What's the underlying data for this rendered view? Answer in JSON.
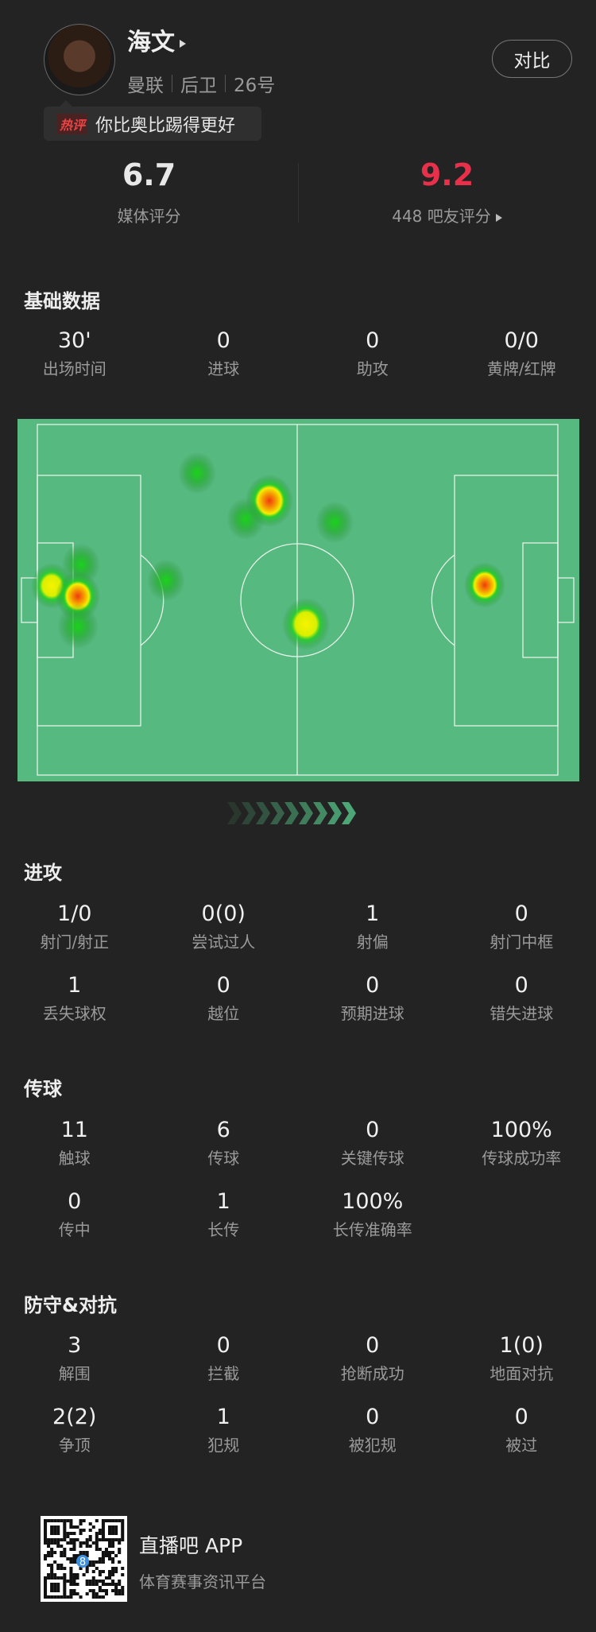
{
  "player": {
    "name": "海文",
    "team": "曼联",
    "position": "后卫",
    "number": "26号"
  },
  "compare_label": "对比",
  "hot_comment": {
    "tag": "热评",
    "text": "你比奥比踢得更好"
  },
  "ratings": {
    "media": {
      "value": "6.7",
      "label": "媒体评分"
    },
    "fans": {
      "value": "9.2",
      "label": "448 吧友评分",
      "color": "#e8304a"
    }
  },
  "sections": {
    "basic": {
      "title": "基础数据",
      "rows": [
        [
          {
            "value": "30'",
            "label": "出场时间"
          },
          {
            "value": "0",
            "label": "进球"
          },
          {
            "value": "0",
            "label": "助攻"
          },
          {
            "value": "0/0",
            "label": "黄牌/红牌"
          }
        ]
      ]
    },
    "attack": {
      "title": "进攻",
      "rows": [
        [
          {
            "value": "1/0",
            "label": "射门/射正"
          },
          {
            "value": "0(0)",
            "label": "尝试过人"
          },
          {
            "value": "1",
            "label": "射偏"
          },
          {
            "value": "0",
            "label": "射门中框"
          }
        ],
        [
          {
            "value": "1",
            "label": "丢失球权"
          },
          {
            "value": "0",
            "label": "越位"
          },
          {
            "value": "0",
            "label": "预期进球"
          },
          {
            "value": "0",
            "label": "错失进球"
          }
        ]
      ]
    },
    "passing": {
      "title": "传球",
      "rows": [
        [
          {
            "value": "11",
            "label": "触球"
          },
          {
            "value": "6",
            "label": "传球"
          },
          {
            "value": "0",
            "label": "关键传球"
          },
          {
            "value": "100%",
            "label": "传球成功率"
          }
        ],
        [
          {
            "value": "0",
            "label": "传中"
          },
          {
            "value": "1",
            "label": "长传"
          },
          {
            "value": "100%",
            "label": "长传准确率"
          }
        ]
      ]
    },
    "defense": {
      "title": "防守&对抗",
      "rows": [
        [
          {
            "value": "3",
            "label": "解围"
          },
          {
            "value": "0",
            "label": "拦截"
          },
          {
            "value": "0",
            "label": "抢断成功"
          },
          {
            "value": "1(0)",
            "label": "地面对抗"
          }
        ],
        [
          {
            "value": "2(2)",
            "label": "争顶"
          },
          {
            "value": "1",
            "label": "犯规"
          },
          {
            "value": "0",
            "label": "被犯规"
          },
          {
            "value": "0",
            "label": "被过"
          }
        ]
      ]
    }
  },
  "heatmap": {
    "pitch_color": "#56b97f",
    "line_color": "#e6f2ea"
  },
  "footer": {
    "app_name": "直播吧 APP",
    "tagline": "体育赛事资讯平台",
    "qr_logo_text": "8"
  }
}
